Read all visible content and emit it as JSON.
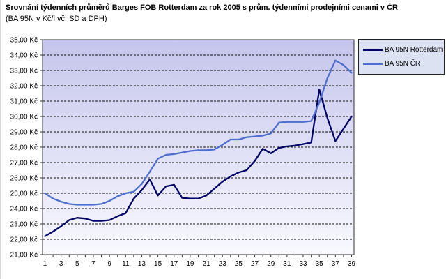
{
  "header": {
    "title": "Srovnání týdenních průměrů Barges FOB Rotterdam za rok 2005 s prům. týdenními prodejními cenami v ČR",
    "subtitle": "(BA 95N v Kč/l vč. SD a DPH)"
  },
  "legend": {
    "items": [
      {
        "label": "BA 95N Rotterdam"
      },
      {
        "label": "BA 95N ČR"
      }
    ]
  },
  "chart_data": {
    "type": "line",
    "title": "Srovnání týdenních průměrů Barges FOB Rotterdam za rok 2005 s prům. týdenními prodejními cenami v ČR",
    "subtitle": "(BA 95N v Kč/l vč. SD a DPH)",
    "xlabel": "",
    "ylabel": "",
    "x": [
      1,
      2,
      3,
      4,
      5,
      6,
      7,
      8,
      9,
      10,
      11,
      12,
      13,
      14,
      15,
      16,
      17,
      18,
      19,
      20,
      21,
      22,
      23,
      24,
      25,
      26,
      27,
      28,
      29,
      30,
      31,
      32,
      33,
      34,
      35,
      36,
      37,
      38,
      39
    ],
    "x_tick_labels": [
      "1",
      "3",
      "5",
      "7",
      "9",
      "11",
      "13",
      "15",
      "17",
      "19",
      "21",
      "23",
      "25",
      "27",
      "29",
      "31",
      "33",
      "35",
      "37",
      "39"
    ],
    "x_labeled_weeks": [
      1,
      3,
      5,
      7,
      9,
      11,
      13,
      15,
      17,
      19,
      21,
      23,
      25,
      27,
      29,
      31,
      33,
      35,
      37,
      39
    ],
    "series": [
      {
        "name": "BA 95N Rotterdam",
        "color": "#000066",
        "values": [
          22.2,
          22.5,
          22.85,
          23.25,
          23.4,
          23.35,
          23.2,
          23.2,
          23.25,
          23.5,
          23.7,
          24.65,
          25.2,
          25.9,
          24.85,
          25.45,
          25.55,
          24.7,
          24.65,
          24.65,
          24.85,
          25.3,
          25.75,
          26.1,
          26.35,
          26.5,
          27.1,
          27.9,
          27.6,
          27.95,
          28.05,
          28.1,
          28.2,
          28.3,
          31.75,
          29.9,
          28.4,
          29.2,
          30.0
        ]
      },
      {
        "name": "BA 95N ČR",
        "color": "#4d6ecc",
        "values": [
          25.0,
          24.65,
          24.45,
          24.3,
          24.25,
          24.25,
          24.25,
          24.3,
          24.5,
          24.8,
          25.0,
          25.1,
          25.6,
          26.4,
          27.25,
          27.5,
          27.55,
          27.65,
          27.75,
          27.8,
          27.8,
          27.85,
          28.15,
          28.5,
          28.5,
          28.65,
          28.7,
          28.75,
          28.9,
          29.6,
          29.65,
          29.65,
          29.65,
          29.7,
          30.9,
          32.5,
          33.65,
          33.35,
          32.85
        ]
      }
    ],
    "y_axis": {
      "min": 21,
      "max": 35,
      "step": 1,
      "unit": "Kč"
    },
    "y_tick_labels": [
      "35,00 Kč",
      "34,00 Kč",
      "33,00 Kč",
      "32,00 Kč",
      "31,00 Kč",
      "30,00 Kč",
      "29,00 Kč",
      "28,00 Kč",
      "27,00 Kč",
      "26,00 Kč",
      "25,00 Kč",
      "24,00 Kč",
      "23,00 Kč",
      "22,00 Kč",
      "21,00 Kč"
    ],
    "ylim": [
      21,
      35
    ],
    "grid": "horizontal-dashed",
    "legend_position": "top-right",
    "colors": {
      "grid": "#111111",
      "axis_border": "#333333",
      "plot_bg_top": "#c5c5ec",
      "plot_bg_bottom": "#f9f9ff",
      "legend_bg": "#dde2f3"
    }
  }
}
